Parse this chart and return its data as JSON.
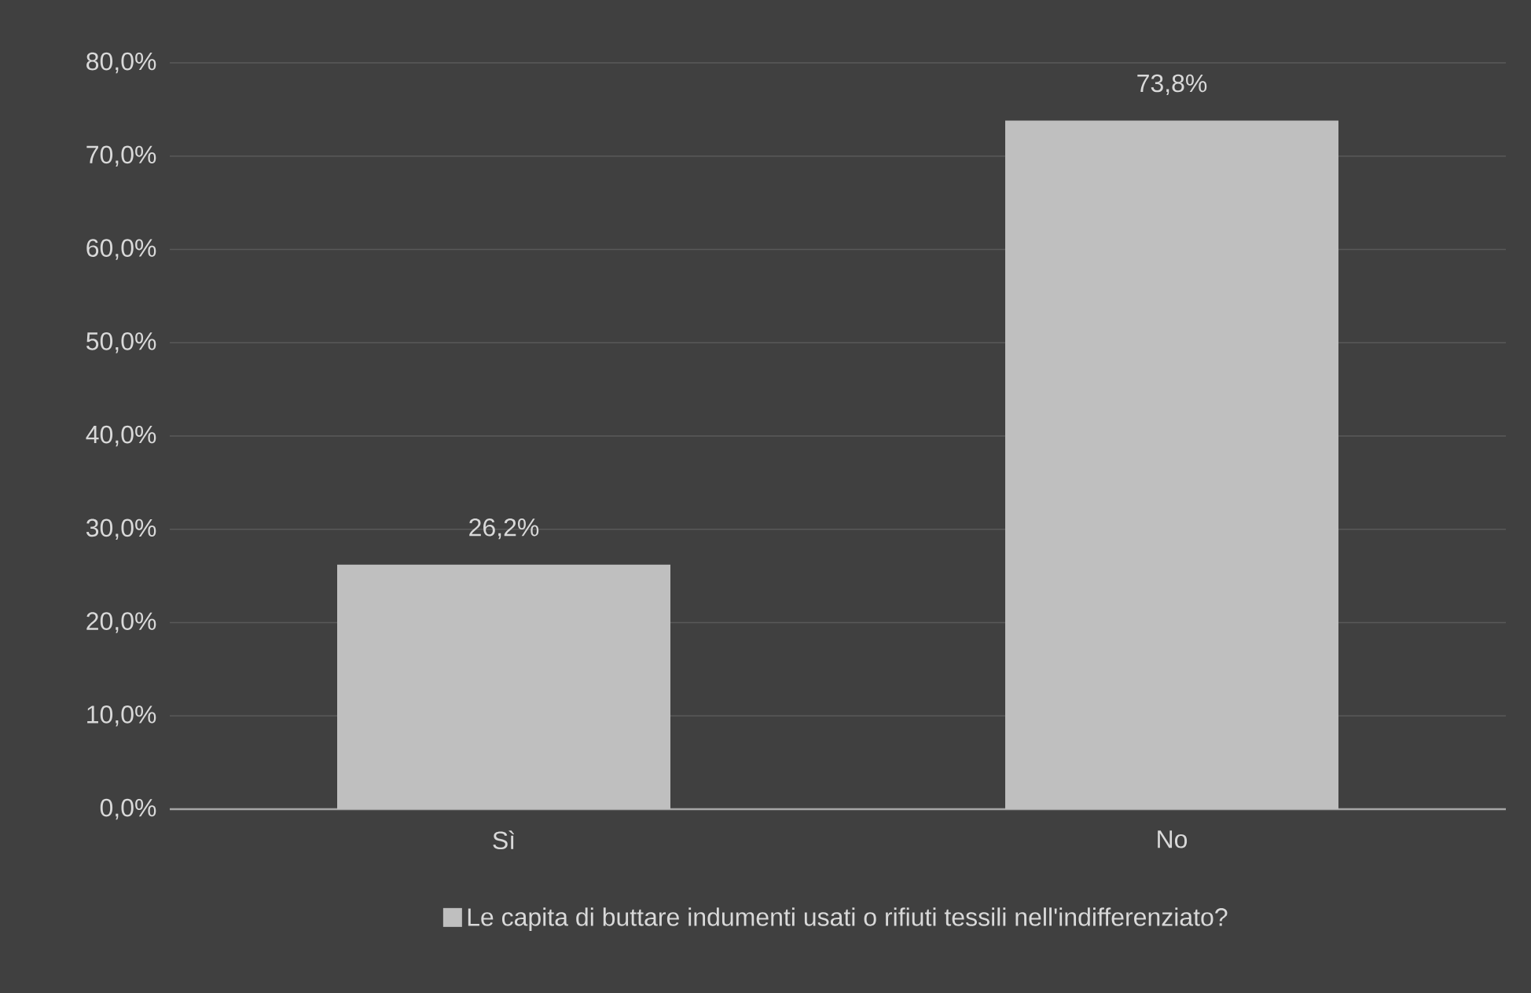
{
  "chart_data": {
    "type": "bar",
    "categories": [
      "Sì",
      "No"
    ],
    "series": [
      {
        "name": "Le capita di buttare indumenti usati o rifiuti tessili nell'indifferenziato?",
        "color": "#bfbfbf",
        "values": [
          26.2,
          73.8
        ],
        "value_labels": [
          "26,2%",
          "73,8%"
        ]
      }
    ],
    "ylim": [
      0,
      80
    ],
    "yticks": [
      {
        "value": 0,
        "label": "0,0%"
      },
      {
        "value": 10,
        "label": "10,0%"
      },
      {
        "value": 20,
        "label": "20,0%"
      },
      {
        "value": 30,
        "label": "30,0%"
      },
      {
        "value": 40,
        "label": "40,0%"
      },
      {
        "value": 50,
        "label": "50,0%"
      },
      {
        "value": 60,
        "label": "60,0%"
      },
      {
        "value": 70,
        "label": "70,0%"
      },
      {
        "value": 80,
        "label": "80,0%"
      }
    ],
    "grid": "y",
    "legend": "bottom"
  }
}
